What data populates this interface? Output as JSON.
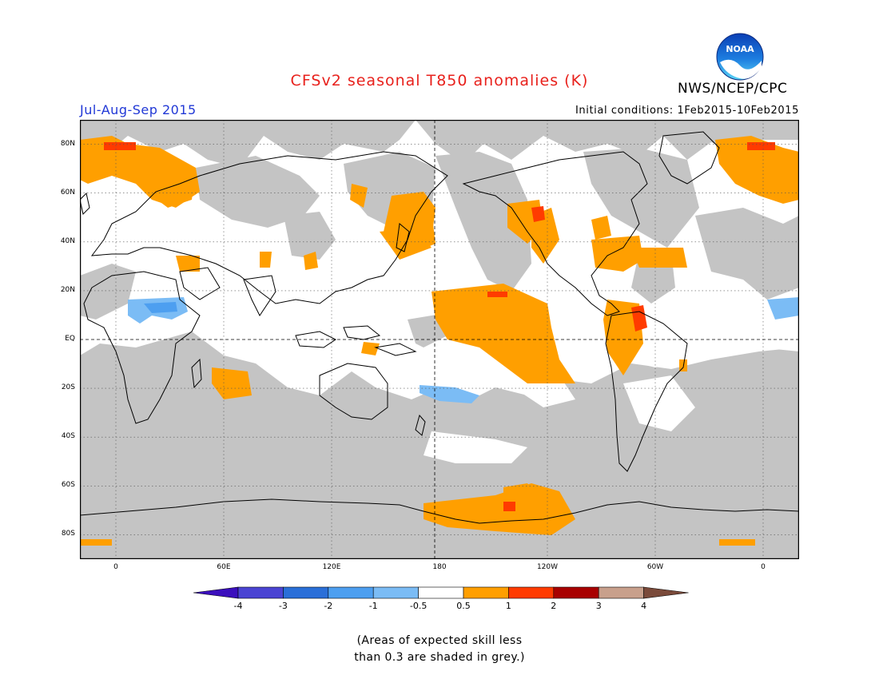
{
  "header": {
    "title": "CFSv2 seasonal T850 anomalies (K)",
    "agency": "NWS/NCEP/CPC",
    "logo_text": "NOAA",
    "season": "Jul-Aug-Sep 2015",
    "initial_conditions": "Initial conditions: 1Feb2015-10Feb2015"
  },
  "map": {
    "projection": "equirectangular",
    "lon_range": [
      -20,
      380
    ],
    "lat_range": [
      -90,
      90
    ],
    "lat_ticks": [
      "80N",
      "60N",
      "40N",
      "20N",
      "EQ",
      "20S",
      "40S",
      "60S",
      "80S"
    ],
    "lat_values": [
      80,
      60,
      40,
      20,
      0,
      -20,
      -40,
      -60,
      -80
    ],
    "lon_ticks": [
      "0",
      "60E",
      "120E",
      "180",
      "120W",
      "60W",
      "0"
    ],
    "lon_values": [
      0,
      60,
      120,
      180,
      240,
      300,
      360
    ],
    "grid": "dotted",
    "grey_meaning": "skill < 0.3"
  },
  "colorbar": {
    "labels": [
      "-4",
      "-3",
      "-2",
      "-1",
      "-0.5",
      "0.5",
      "1",
      "2",
      "3",
      "4"
    ],
    "colors": [
      "#3b0fbd",
      "#4b44d3",
      "#2a6fd8",
      "#4d9ff0",
      "#7bbcf5",
      "#ffffff",
      "#ff9f00",
      "#ff3b00",
      "#a80000",
      "#c8a08c",
      "#7a4a3a"
    ]
  },
  "colors": {
    "grey": "#c4c4c4",
    "warm1": "#ff9f00",
    "warm2": "#ff3b00",
    "cool1": "#7bbcf5",
    "cool2": "#4d9ff0",
    "title": "#e8211c",
    "season": "#2138d6"
  },
  "note": {
    "line1": "(Areas of expected skill less",
    "line2": "than 0.3 are shaded in grey.)"
  }
}
